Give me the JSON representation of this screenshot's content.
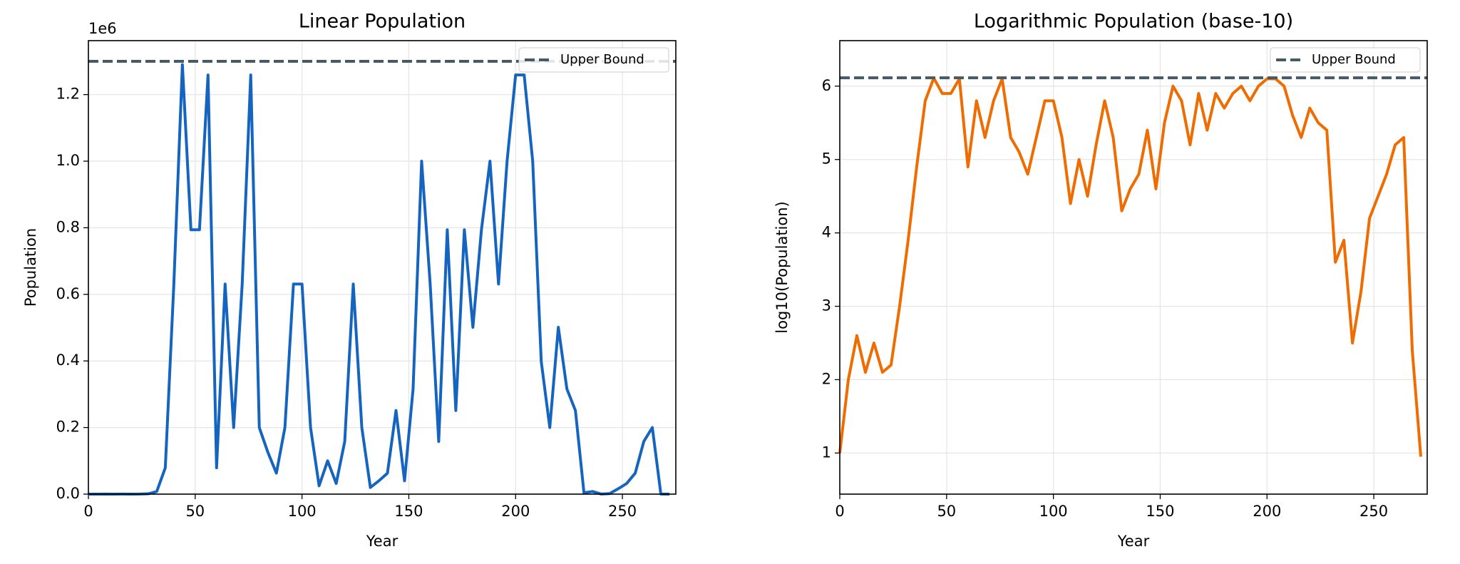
{
  "chart_data": [
    {
      "type": "line",
      "title": "Linear Population",
      "xlabel": "Year",
      "ylabel": "Population",
      "offset_label": "1e6",
      "x": [
        0,
        4,
        8,
        12,
        16,
        20,
        24,
        28,
        32,
        36,
        40,
        44,
        48,
        52,
        56,
        60,
        64,
        68,
        72,
        76,
        80,
        84,
        88,
        92,
        96,
        100,
        104,
        108,
        112,
        116,
        120,
        124,
        128,
        132,
        136,
        140,
        144,
        148,
        152,
        156,
        160,
        164,
        168,
        172,
        176,
        180,
        184,
        188,
        192,
        196,
        200,
        204,
        208,
        212,
        216,
        220,
        224,
        228,
        232,
        236,
        240,
        244,
        248,
        252,
        256,
        260,
        264,
        268,
        272
      ],
      "series": [
        {
          "name": "Population",
          "color": "#1565c0",
          "values": [
            10,
            100,
            400,
            126,
            316,
            126,
            158,
            1000,
            7900,
            79000,
            631000,
            1290000,
            794000,
            794000,
            1259000,
            79000,
            631000,
            200000,
            631000,
            1259000,
            200000,
            126000,
            63000,
            200000,
            631000,
            631000,
            200000,
            25000,
            100000,
            32000,
            158000,
            631000,
            200000,
            20000,
            40000,
            63000,
            251000,
            40000,
            316000,
            1000000,
            631000,
            158000,
            794000,
            251000,
            794000,
            501000,
            794000,
            1000000,
            631000,
            1000000,
            1259000,
            1259000,
            1000000,
            398000,
            200000,
            501000,
            316000,
            251000,
            4000,
            7900,
            316,
            1600,
            16000,
            32000,
            63000,
            158000,
            200000,
            250,
            9
          ]
        }
      ],
      "hlines": [
        {
          "name": "Upper Bound",
          "value": 1300000,
          "color": "#455a64"
        }
      ],
      "xlim": [
        0,
        275
      ],
      "xticks": [
        0,
        50,
        100,
        150,
        200,
        250
      ],
      "ylim": [
        0,
        1362000
      ],
      "yticks": [
        {
          "value": 0,
          "label": "0.0"
        },
        {
          "value": 200000,
          "label": "0.2"
        },
        {
          "value": 400000,
          "label": "0.4"
        },
        {
          "value": 600000,
          "label": "0.6"
        },
        {
          "value": 800000,
          "label": "0.8"
        },
        {
          "value": 1000000,
          "label": "1.0"
        },
        {
          "value": 1200000,
          "label": "1.2"
        }
      ],
      "grid": true,
      "legend": "upper right"
    },
    {
      "type": "line",
      "title": "Logarithmic Population (base-10)",
      "xlabel": "Year",
      "ylabel": "log10(Population)",
      "x": [
        0,
        4,
        8,
        12,
        16,
        20,
        24,
        28,
        32,
        36,
        40,
        44,
        48,
        52,
        56,
        60,
        64,
        68,
        72,
        76,
        80,
        84,
        88,
        92,
        96,
        100,
        104,
        108,
        112,
        116,
        120,
        124,
        128,
        132,
        136,
        140,
        144,
        148,
        152,
        156,
        160,
        164,
        168,
        172,
        176,
        180,
        184,
        188,
        192,
        196,
        200,
        204,
        208,
        212,
        216,
        220,
        224,
        228,
        232,
        236,
        240,
        244,
        248,
        252,
        256,
        260,
        264,
        268,
        272
      ],
      "series": [
        {
          "name": "log10(Population)",
          "color": "#ef6c00",
          "values": [
            1.0,
            2.0,
            2.6,
            2.1,
            2.5,
            2.1,
            2.2,
            3.0,
            3.9,
            4.9,
            5.8,
            6.11,
            5.9,
            5.9,
            6.1,
            4.9,
            5.8,
            5.3,
            5.8,
            6.1,
            5.3,
            5.1,
            4.8,
            5.3,
            5.8,
            5.8,
            5.3,
            4.4,
            5.0,
            4.5,
            5.2,
            5.8,
            5.3,
            4.3,
            4.6,
            4.8,
            5.4,
            4.6,
            5.5,
            6.0,
            5.8,
            5.2,
            5.9,
            5.4,
            5.9,
            5.7,
            5.9,
            6.0,
            5.8,
            6.0,
            6.1,
            6.1,
            6.0,
            5.6,
            5.3,
            5.7,
            5.5,
            5.4,
            3.6,
            3.9,
            2.5,
            3.2,
            4.2,
            4.5,
            4.8,
            5.2,
            5.3,
            2.4,
            0.95
          ]
        }
      ],
      "hlines": [
        {
          "name": "Upper Bound",
          "value": 6.114,
          "color": "#455a64"
        }
      ],
      "xlim": [
        0,
        275
      ],
      "xticks": [
        0,
        50,
        100,
        150,
        200,
        250
      ],
      "ylim": [
        0.44,
        6.62
      ],
      "yticks": [
        1,
        2,
        3,
        4,
        5,
        6
      ],
      "grid": true,
      "legend": "upper right"
    }
  ]
}
